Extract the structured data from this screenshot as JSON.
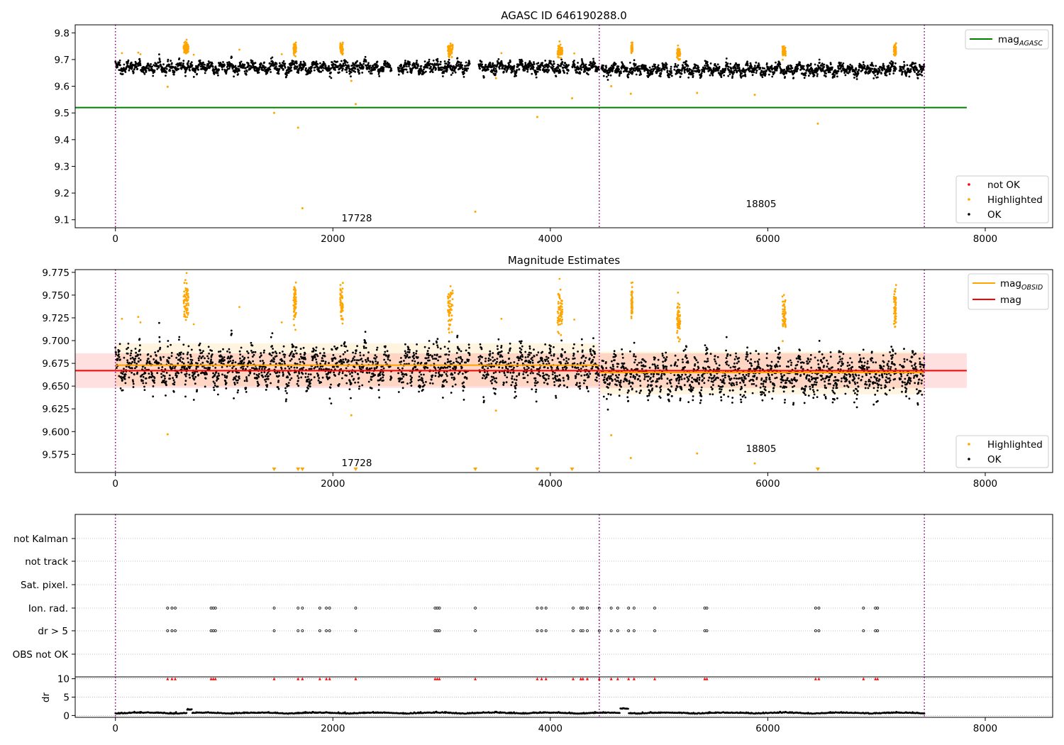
{
  "figure": {
    "panel1_title": "AGASC ID 646190288.0",
    "panel2_title": "Magnitude Estimates",
    "obsid_labels": [
      "17728",
      "18805"
    ]
  },
  "colors": {
    "ok": "#000000",
    "highlighted": "#ffa500",
    "not_ok": "#ff0000",
    "mag_agasc": "#008000",
    "mag": "#ff0000",
    "mag_obsid": "#ffa500",
    "obs_boundary": "#800080"
  },
  "chart_data": [
    {
      "type": "scatter",
      "title": "AGASC ID 646190288.0",
      "xlim": [
        -370,
        8620
      ],
      "ylim": [
        9.07,
        9.83
      ],
      "x_ticks": [
        0,
        2000,
        4000,
        6000,
        8000
      ],
      "y_ticks": [
        9.1,
        9.2,
        9.3,
        9.4,
        9.5,
        9.6,
        9.7,
        9.8
      ],
      "legend_upper": {
        "position": "top-right",
        "entries": [
          {
            "label": "mag",
            "sub": "AGASC",
            "color": "#008000"
          }
        ]
      },
      "legend_lower": {
        "position": "bottom-right",
        "entries": [
          {
            "label": "not OK",
            "color": "#ff0000"
          },
          {
            "label": "Highlighted",
            "color": "#ffa500"
          },
          {
            "label": "OK",
            "color": "#000000"
          }
        ]
      },
      "mag_agasc": 9.52,
      "mag_agasc_x": [
        -370,
        7830
      ],
      "ok_level": 9.67,
      "ok_time_range": [
        0,
        7440
      ],
      "obs_boundaries": [
        0,
        4450,
        7440
      ],
      "highlight_outliers": [
        {
          "x": 480,
          "y": 9.598
        },
        {
          "x": 1460,
          "y": 9.5
        },
        {
          "x": 1680,
          "y": 9.445
        },
        {
          "x": 1720,
          "y": 9.143
        },
        {
          "x": 2170,
          "y": 9.62
        },
        {
          "x": 2210,
          "y": 9.533
        },
        {
          "x": 3310,
          "y": 9.13
        },
        {
          "x": 3500,
          "y": 9.63
        },
        {
          "x": 3880,
          "y": 9.485
        },
        {
          "x": 4200,
          "y": 9.555
        },
        {
          "x": 4560,
          "y": 9.6
        },
        {
          "x": 4740,
          "y": 9.572
        },
        {
          "x": 5350,
          "y": 9.575
        },
        {
          "x": 5880,
          "y": 9.568
        },
        {
          "x": 6460,
          "y": 9.46
        }
      ]
    },
    {
      "type": "scatter",
      "title": "Magnitude Estimates",
      "xlim": [
        -370,
        8620
      ],
      "ylim": [
        9.555,
        9.778
      ],
      "x_ticks": [
        0,
        2000,
        4000,
        6000,
        8000
      ],
      "y_ticks": [
        9.575,
        9.6,
        9.625,
        9.65,
        9.675,
        9.7,
        9.725,
        9.75,
        9.775
      ],
      "legend_upper": {
        "position": "top-right",
        "entries": [
          {
            "label": "mag",
            "sub": "OBSID",
            "color": "#ffa500"
          },
          {
            "label": "mag",
            "color": "#ff0000"
          }
        ]
      },
      "legend_lower": {
        "position": "bottom-right",
        "entries": [
          {
            "label": "Highlighted",
            "color": "#ffa500"
          },
          {
            "label": "OK",
            "color": "#000000"
          }
        ]
      },
      "mag": 9.667,
      "mag_band": [
        9.648,
        9.686
      ],
      "mag_x": [
        -370,
        7830
      ],
      "obsid_segments": [
        {
          "x": [
            0,
            4450
          ],
          "mag": 9.673,
          "band": [
            9.65,
            9.697
          ]
        },
        {
          "x": [
            4450,
            7440
          ],
          "mag": 9.665,
          "band": [
            9.641,
            9.688
          ]
        }
      ],
      "obs_boundaries": [
        0,
        4450,
        7440
      ],
      "lower_limit_markers_x": [
        1460,
        1680,
        1720,
        2210,
        3310,
        3880,
        4200,
        6460
      ],
      "highlight_outliers": [
        {
          "x": 480,
          "y": 9.597
        },
        {
          "x": 2170,
          "y": 9.618
        },
        {
          "x": 3500,
          "y": 9.623
        },
        {
          "x": 4560,
          "y": 9.596
        },
        {
          "x": 4740,
          "y": 9.571
        },
        {
          "x": 5350,
          "y": 9.576
        },
        {
          "x": 5880,
          "y": 9.565
        }
      ]
    },
    {
      "type": "scatter",
      "title": "",
      "xlim": [
        -370,
        8620
      ],
      "x_ticks": [
        0,
        2000,
        4000,
        6000,
        8000
      ],
      "categories": [
        "OBS not OK",
        "dr > 5",
        "Ion. rad.",
        "Sat. pixel.",
        "not track",
        "not Kalman"
      ],
      "obs_boundaries": [
        0,
        4450,
        7440
      ],
      "flag_times": [
        480,
        520,
        550,
        880,
        900,
        920,
        1460,
        1680,
        1720,
        1880,
        1940,
        1970,
        2210,
        2940,
        2960,
        2980,
        3310,
        3880,
        3920,
        3960,
        4210,
        4280,
        4300,
        4340,
        4450,
        4560,
        4620,
        4720,
        4770,
        4960,
        5420,
        5440,
        6440,
        6470,
        6880,
        6990,
        7010
      ]
    },
    {
      "type": "line",
      "title": "",
      "ylabel": "dr",
      "xlim": [
        -370,
        8620
      ],
      "ylim": [
        -0.5,
        10.5
      ],
      "y_ticks": [
        0,
        5,
        10
      ],
      "x_ticks": [
        0,
        2000,
        4000,
        6000,
        8000
      ],
      "obs_boundaries": [
        0,
        4450,
        7440
      ],
      "clipped_at": 10
    }
  ]
}
